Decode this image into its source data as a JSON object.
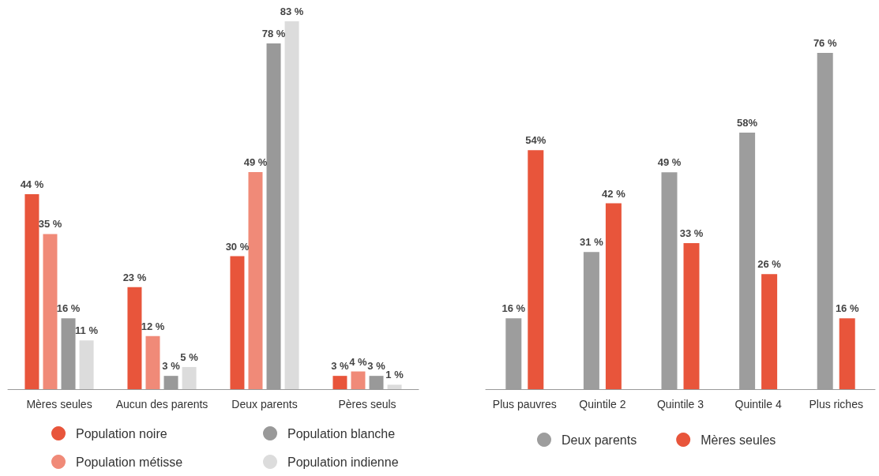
{
  "chart_data": [
    {
      "type": "bar",
      "categories": [
        "Mères seules",
        "Aucun des parents",
        "Deux parents",
        "Pères seuls"
      ],
      "series": [
        {
          "name": "Population noire",
          "color": "#e8553b",
          "values": [
            44,
            23,
            30,
            3
          ],
          "value_labels": [
            "44 %",
            "23 %",
            "30 %",
            "3 %"
          ]
        },
        {
          "name": "Population métisse",
          "color": "#f08a78",
          "values": [
            35,
            12,
            49,
            4
          ],
          "value_labels": [
            "35 %",
            "12 %",
            "49 %",
            "4 %"
          ]
        },
        {
          "name": "Population blanche",
          "color": "#999999",
          "values": [
            16,
            3,
            78,
            3
          ],
          "value_labels": [
            "16 %",
            "3 %",
            "78 %",
            "3 %"
          ]
        },
        {
          "name": "Population indienne",
          "color": "#dcdcdc",
          "values": [
            11,
            5,
            83,
            1
          ],
          "value_labels": [
            "11 %",
            "5 %",
            "83 %",
            "1 %"
          ]
        }
      ],
      "legend": "bottom"
    },
    {
      "type": "bar",
      "categories": [
        "Plus pauvres",
        "Quintile 2",
        "Quintile 3",
        "Quintile 4",
        "Plus riches"
      ],
      "series": [
        {
          "name": "Deux parents",
          "color": "#9d9d9d",
          "values": [
            16,
            31,
            49,
            58,
            76
          ],
          "value_labels": [
            "16 %",
            "31 %",
            "49 %",
            "58%",
            "76 %"
          ]
        },
        {
          "name": "Mères seules",
          "color": "#e8553b",
          "values": [
            54,
            42,
            33,
            26,
            16
          ],
          "value_labels": [
            "54%",
            "42 %",
            "33 %",
            "26 %",
            "16 %"
          ]
        }
      ],
      "legend": "bottom"
    }
  ]
}
